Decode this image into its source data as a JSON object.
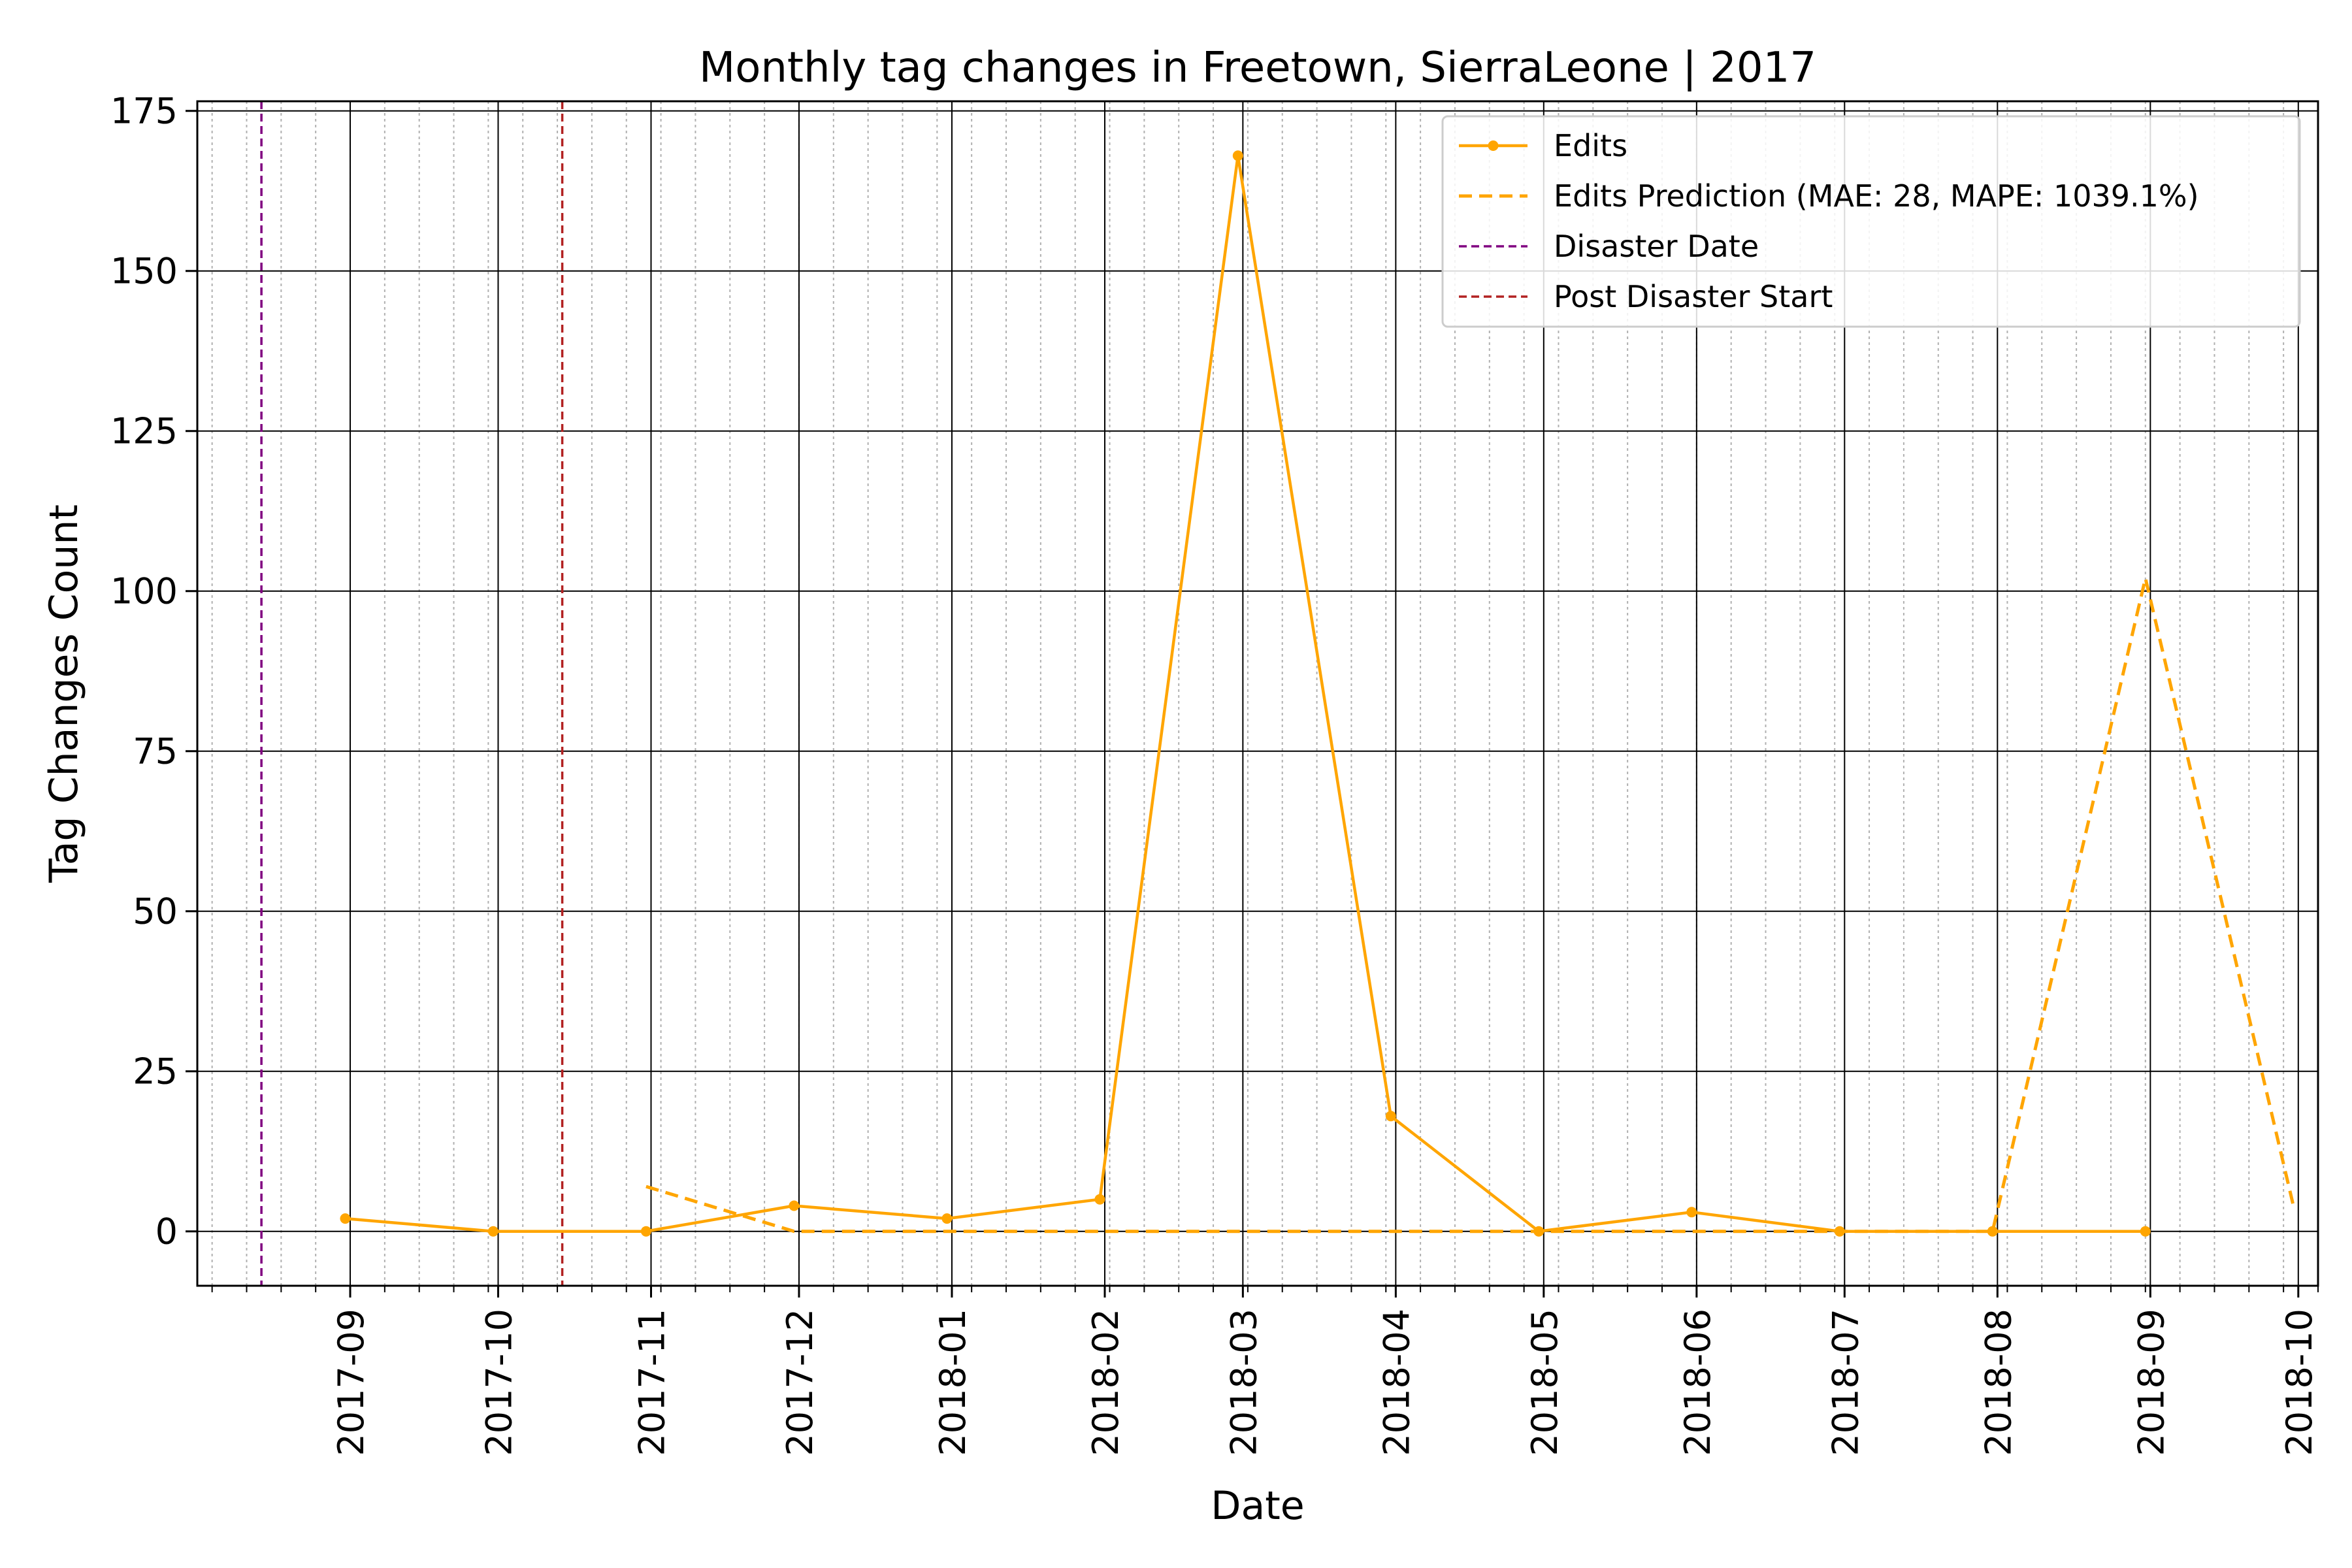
{
  "chart_data": {
    "type": "line",
    "title": "Monthly tag changes in Freetown, SierraLeone | 2017",
    "xlabel": "Date",
    "ylabel": "Tag Changes Count",
    "x_range": [
      "2017-08-01",
      "2018-10-05"
    ],
    "ylim": [
      -8.5,
      176.5
    ],
    "yticks": [
      0,
      25,
      50,
      75,
      100,
      125,
      150,
      175
    ],
    "xticks": [
      "2017-09",
      "2017-10",
      "2017-11",
      "2017-12",
      "2018-01",
      "2018-02",
      "2018-03",
      "2018-04",
      "2018-05",
      "2018-06",
      "2018-07",
      "2018-08",
      "2018-09",
      "2018-10"
    ],
    "grid": true,
    "legend_position": "top-right",
    "series": [
      {
        "name": "Edits",
        "color": "#FFA500",
        "style": "solid-with-markers",
        "x": [
          "2017-08-31",
          "2017-09-30",
          "2017-10-31",
          "2017-11-30",
          "2017-12-31",
          "2018-01-31",
          "2018-02-28",
          "2018-03-31",
          "2018-04-30",
          "2018-05-31",
          "2018-06-30",
          "2018-07-31",
          "2018-08-31"
        ],
        "values": [
          2,
          0,
          0,
          4,
          2,
          5,
          168,
          18,
          0,
          3,
          0,
          0,
          0
        ]
      },
      {
        "name": "Edits Prediction (MAE: 28, MAPE: 1039.1%)",
        "color": "#FFA500",
        "style": "dashed",
        "x": [
          "2017-10-31",
          "2017-11-30",
          "2017-12-31",
          "2018-01-31",
          "2018-02-28",
          "2018-03-31",
          "2018-04-30",
          "2018-05-31",
          "2018-06-30",
          "2018-07-31",
          "2018-08-31",
          "2018-09-30"
        ],
        "values": [
          7,
          0,
          0,
          0,
          0,
          0,
          0,
          0,
          0,
          0,
          102,
          4
        ]
      }
    ],
    "vlines": [
      {
        "name": "Disaster Date",
        "x": "2017-08-14",
        "color": "#800080",
        "style": "dashed"
      },
      {
        "name": "Post Disaster Start",
        "x": "2017-10-14",
        "color": "#B22222",
        "style": "dashed"
      }
    ]
  }
}
